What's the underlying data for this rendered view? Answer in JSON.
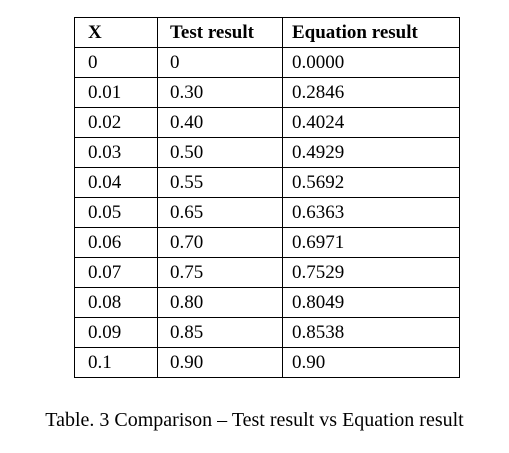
{
  "table": {
    "headers": [
      "X",
      "Test result",
      "Equation result"
    ],
    "rows": [
      [
        "0",
        "0",
        "0.0000"
      ],
      [
        "0.01",
        "0.30",
        "0.2846"
      ],
      [
        "0.02",
        "0.40",
        "0.4024"
      ],
      [
        "0.03",
        "0.50",
        "0.4929"
      ],
      [
        "0.04",
        "0.55",
        "0.5692"
      ],
      [
        "0.05",
        "0.65",
        "0.6363"
      ],
      [
        "0.06",
        "0.70",
        "0.6971"
      ],
      [
        "0.07",
        "0.75",
        "0.7529"
      ],
      [
        "0.08",
        "0.80",
        "0.8049"
      ],
      [
        "0.09",
        "0.85",
        "0.8538"
      ],
      [
        "0.1",
        "0.90",
        "0.90"
      ]
    ]
  },
  "caption": "Table. 3 Comparison – Test result vs Equation result"
}
